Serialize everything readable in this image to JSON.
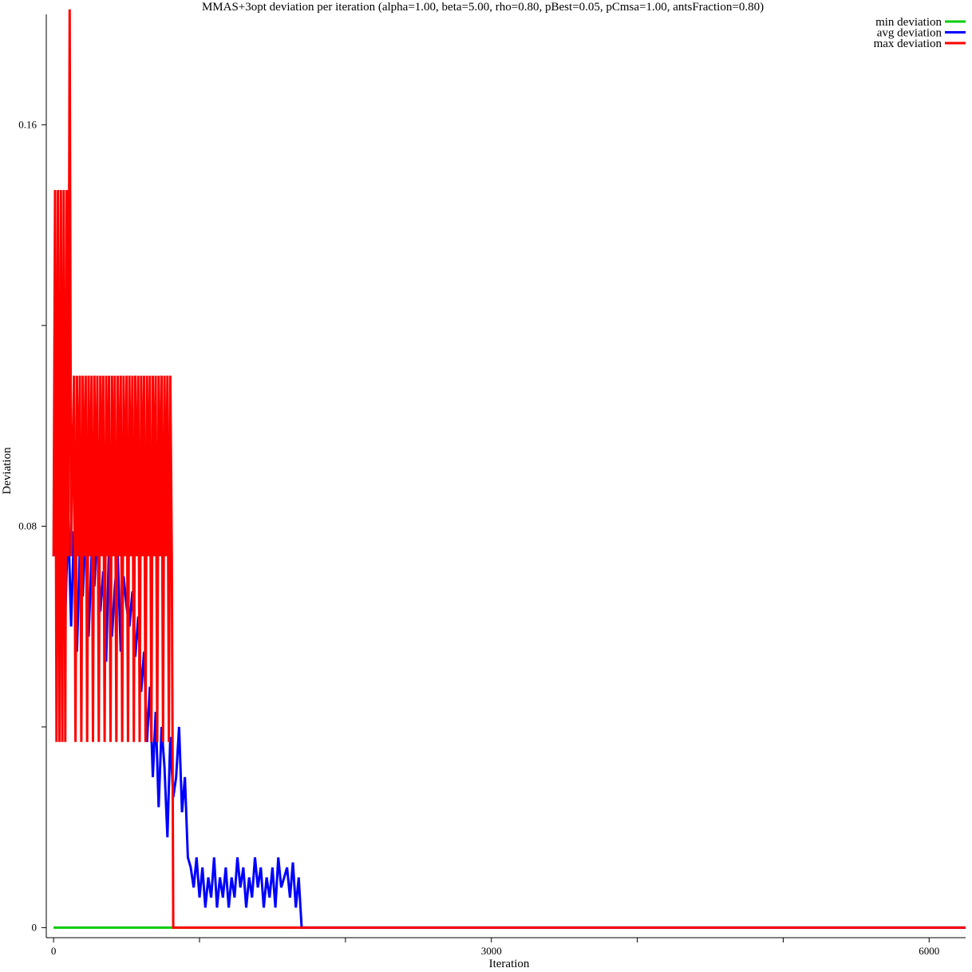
{
  "chart_data": {
    "type": "line",
    "title": "MMAS+3opt deviation per iteration (alpha=1.00, beta=5.00, rho=0.80, pBest=0.05, pCmsa=1.00, antsFraction=0.80)",
    "xlabel": "Iteration",
    "ylabel": "Deviation",
    "xlim": [
      -50,
      6250
    ],
    "ylim": [
      -0.002,
      0.182
    ],
    "x_ticks": [
      {
        "value": 0,
        "label": "0"
      },
      {
        "value": 1000,
        "label": ""
      },
      {
        "value": 2000,
        "label": ""
      },
      {
        "value": 3000,
        "label": "3000"
      },
      {
        "value": 4000,
        "label": ""
      },
      {
        "value": 5000,
        "label": ""
      },
      {
        "value": 6000,
        "label": "6000"
      }
    ],
    "y_ticks": [
      {
        "value": 0,
        "label": "0"
      },
      {
        "value": 0.04,
        "label": ""
      },
      {
        "value": 0.08,
        "label": "0.08"
      },
      {
        "value": 0.12,
        "label": ""
      },
      {
        "value": 0.16,
        "label": "0.16"
      }
    ],
    "legend_position": "top-right",
    "series": [
      {
        "name": "min deviation",
        "color": "#00cc00",
        "points": [
          [
            0,
            0.0
          ],
          [
            6250,
            0.0
          ]
        ]
      },
      {
        "name": "avg deviation",
        "color": "#0000ff",
        "points": [
          [
            0,
            0.074
          ],
          [
            20,
            0.08
          ],
          [
            40,
            0.07
          ],
          [
            60,
            0.088
          ],
          [
            80,
            0.062
          ],
          [
            100,
            0.082
          ],
          [
            120,
            0.06
          ],
          [
            140,
            0.079
          ],
          [
            160,
            0.055
          ],
          [
            180,
            0.076
          ],
          [
            200,
            0.066
          ],
          [
            220,
            0.08
          ],
          [
            240,
            0.058
          ],
          [
            260,
            0.074
          ],
          [
            280,
            0.068
          ],
          [
            300,
            0.08
          ],
          [
            320,
            0.063
          ],
          [
            340,
            0.071
          ],
          [
            360,
            0.053
          ],
          [
            380,
            0.076
          ],
          [
            400,
            0.058
          ],
          [
            420,
            0.068
          ],
          [
            440,
            0.074
          ],
          [
            460,
            0.055
          ],
          [
            480,
            0.07
          ],
          [
            500,
            0.064
          ],
          [
            520,
            0.06
          ],
          [
            540,
            0.067
          ],
          [
            560,
            0.054
          ],
          [
            580,
            0.062
          ],
          [
            600,
            0.047
          ],
          [
            620,
            0.055
          ],
          [
            640,
            0.037
          ],
          [
            660,
            0.048
          ],
          [
            680,
            0.03
          ],
          [
            700,
            0.043
          ],
          [
            720,
            0.024
          ],
          [
            740,
            0.04
          ],
          [
            760,
            0.032
          ],
          [
            780,
            0.018
          ],
          [
            800,
            0.038
          ],
          [
            820,
            0.026
          ],
          [
            840,
            0.03
          ],
          [
            860,
            0.04
          ],
          [
            880,
            0.023
          ],
          [
            900,
            0.03
          ],
          [
            920,
            0.014
          ],
          [
            940,
            0.012
          ],
          [
            960,
            0.008
          ],
          [
            980,
            0.014
          ],
          [
            1000,
            0.006
          ],
          [
            1020,
            0.012
          ],
          [
            1040,
            0.004
          ],
          [
            1060,
            0.01
          ],
          [
            1080,
            0.006
          ],
          [
            1100,
            0.014
          ],
          [
            1120,
            0.004
          ],
          [
            1140,
            0.01
          ],
          [
            1160,
            0.006
          ],
          [
            1180,
            0.012
          ],
          [
            1200,
            0.004
          ],
          [
            1220,
            0.01
          ],
          [
            1240,
            0.006
          ],
          [
            1260,
            0.014
          ],
          [
            1280,
            0.008
          ],
          [
            1300,
            0.012
          ],
          [
            1320,
            0.004
          ],
          [
            1340,
            0.01
          ],
          [
            1360,
            0.006
          ],
          [
            1380,
            0.014
          ],
          [
            1400,
            0.008
          ],
          [
            1420,
            0.012
          ],
          [
            1440,
            0.004
          ],
          [
            1460,
            0.01
          ],
          [
            1480,
            0.006
          ],
          [
            1500,
            0.012
          ],
          [
            1520,
            0.004
          ],
          [
            1540,
            0.014
          ],
          [
            1560,
            0.008
          ],
          [
            1580,
            0.01
          ],
          [
            1600,
            0.012
          ],
          [
            1620,
            0.006
          ],
          [
            1640,
            0.013
          ],
          [
            1660,
            0.004
          ],
          [
            1680,
            0.01
          ],
          [
            1700,
            0.0
          ],
          [
            6250,
            0.0
          ]
        ]
      },
      {
        "name": "max deviation",
        "color": "#ff0000",
        "points": [
          [
            0,
            0.074
          ],
          [
            10,
            0.147
          ],
          [
            20,
            0.037
          ],
          [
            30,
            0.147
          ],
          [
            40,
            0.037
          ],
          [
            50,
            0.147
          ],
          [
            60,
            0.037
          ],
          [
            70,
            0.147
          ],
          [
            80,
            0.037
          ],
          [
            90,
            0.147
          ],
          [
            100,
            0.074
          ],
          [
            110,
            0.183
          ],
          [
            120,
            0.074
          ],
          [
            140,
            0.11
          ],
          [
            150,
            0.037
          ],
          [
            160,
            0.11
          ],
          [
            170,
            0.074
          ],
          [
            180,
            0.11
          ],
          [
            190,
            0.037
          ],
          [
            200,
            0.11
          ],
          [
            210,
            0.074
          ],
          [
            220,
            0.11
          ],
          [
            230,
            0.037
          ],
          [
            240,
            0.11
          ],
          [
            250,
            0.074
          ],
          [
            260,
            0.11
          ],
          [
            270,
            0.037
          ],
          [
            280,
            0.11
          ],
          [
            290,
            0.074
          ],
          [
            300,
            0.11
          ],
          [
            310,
            0.037
          ],
          [
            320,
            0.11
          ],
          [
            330,
            0.074
          ],
          [
            340,
            0.11
          ],
          [
            350,
            0.037
          ],
          [
            360,
            0.11
          ],
          [
            370,
            0.074
          ],
          [
            380,
            0.11
          ],
          [
            390,
            0.037
          ],
          [
            400,
            0.11
          ],
          [
            410,
            0.074
          ],
          [
            420,
            0.11
          ],
          [
            430,
            0.037
          ],
          [
            440,
            0.11
          ],
          [
            450,
            0.074
          ],
          [
            460,
            0.11
          ],
          [
            470,
            0.037
          ],
          [
            480,
            0.11
          ],
          [
            490,
            0.074
          ],
          [
            500,
            0.11
          ],
          [
            510,
            0.037
          ],
          [
            520,
            0.11
          ],
          [
            530,
            0.074
          ],
          [
            540,
            0.11
          ],
          [
            550,
            0.037
          ],
          [
            560,
            0.11
          ],
          [
            570,
            0.074
          ],
          [
            580,
            0.11
          ],
          [
            590,
            0.037
          ],
          [
            600,
            0.11
          ],
          [
            610,
            0.074
          ],
          [
            620,
            0.11
          ],
          [
            630,
            0.037
          ],
          [
            640,
            0.11
          ],
          [
            650,
            0.074
          ],
          [
            660,
            0.11
          ],
          [
            670,
            0.037
          ],
          [
            680,
            0.11
          ],
          [
            690,
            0.074
          ],
          [
            700,
            0.11
          ],
          [
            710,
            0.037
          ],
          [
            720,
            0.11
          ],
          [
            730,
            0.074
          ],
          [
            740,
            0.11
          ],
          [
            750,
            0.037
          ],
          [
            760,
            0.11
          ],
          [
            770,
            0.074
          ],
          [
            780,
            0.11
          ],
          [
            790,
            0.037
          ],
          [
            800,
            0.11
          ],
          [
            810,
            0.074
          ],
          [
            820,
            0.0
          ],
          [
            6250,
            0.0
          ]
        ]
      }
    ]
  }
}
